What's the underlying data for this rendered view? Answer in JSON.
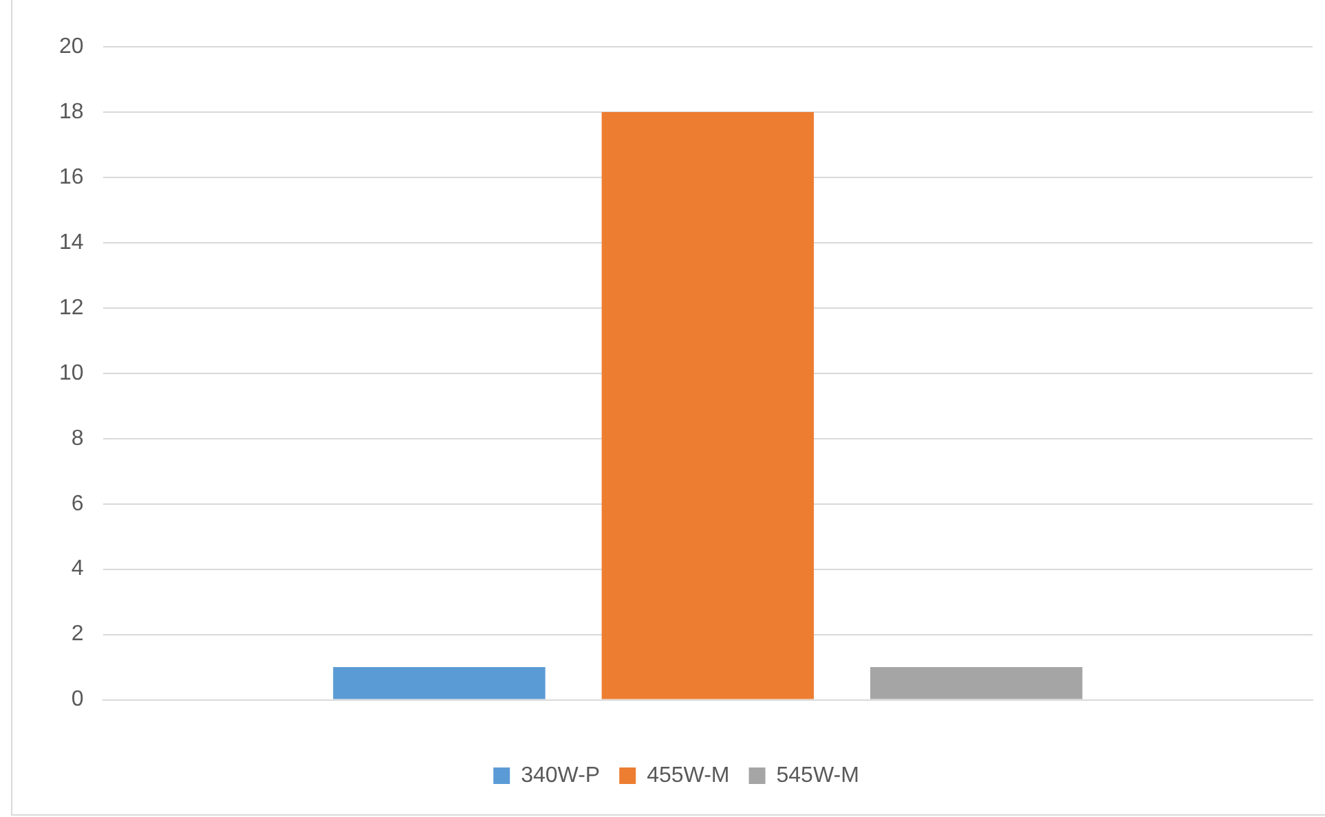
{
  "chart_data": {
    "type": "bar",
    "categories": [
      null
    ],
    "series": [
      {
        "name": "340W-P",
        "color": "#5b9bd5",
        "values": [
          1
        ]
      },
      {
        "name": "455W-M",
        "color": "#ed7d31",
        "values": [
          18
        ]
      },
      {
        "name": "545W-M",
        "color": "#a5a5a5",
        "values": [
          1
        ]
      }
    ],
    "ylim": [
      0,
      20
    ],
    "yticks": [
      0,
      2,
      4,
      6,
      8,
      10,
      12,
      14,
      16,
      18,
      20
    ],
    "grid": "y",
    "legend": "bottom"
  }
}
